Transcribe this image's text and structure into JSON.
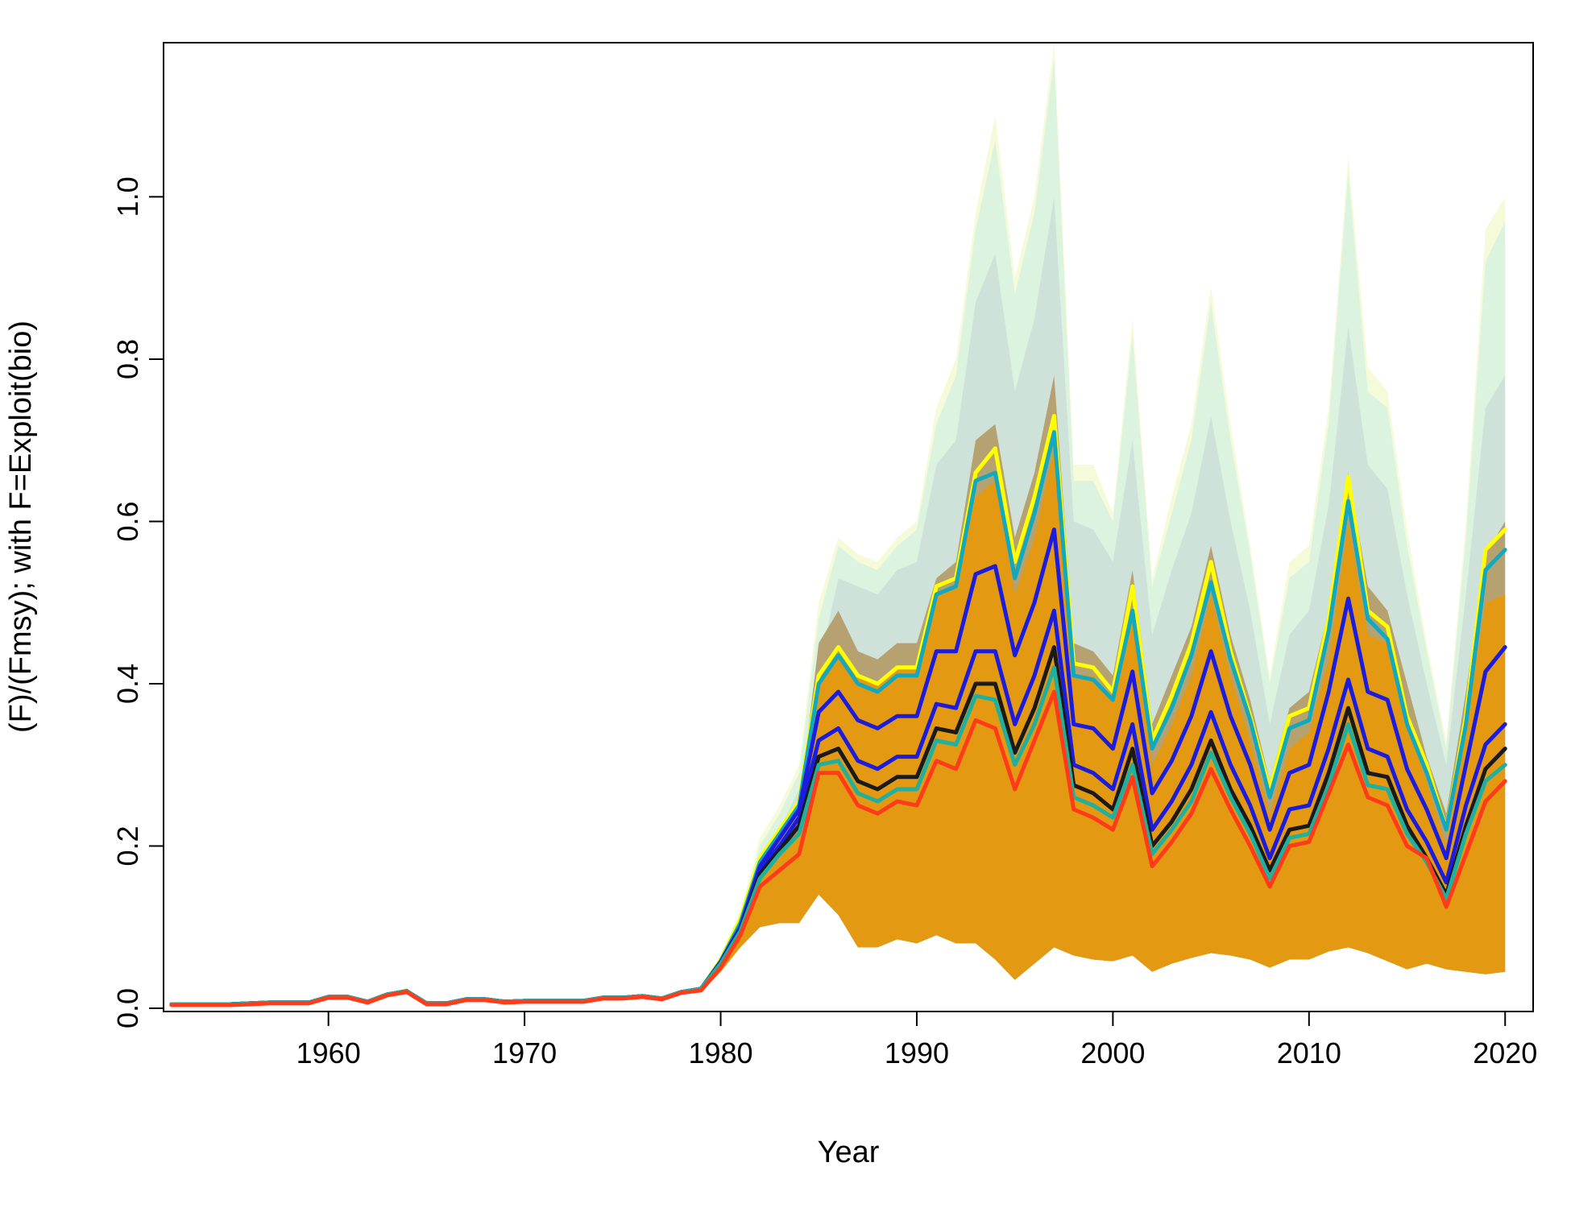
{
  "chart_data": {
    "type": "area",
    "xlabel": "Year",
    "ylabel": "(F)/(Fmsy); with F=Exploit(bio)",
    "xlim": [
      1952,
      2020
    ],
    "ylim": [
      0,
      1.19
    ],
    "xticks": [
      1960,
      1970,
      1980,
      1990,
      2000,
      2010,
      2020
    ],
    "yticks": [
      0.0,
      0.2,
      0.4,
      0.6,
      0.8,
      1.0
    ],
    "ytick_labels": [
      "0.0",
      "0.2",
      "0.4",
      "0.6",
      "0.8",
      "1.0"
    ],
    "grid": false,
    "legend": "none",
    "x": [
      1952,
      1953,
      1954,
      1955,
      1956,
      1957,
      1958,
      1959,
      1960,
      1961,
      1962,
      1963,
      1964,
      1965,
      1966,
      1967,
      1968,
      1969,
      1970,
      1971,
      1972,
      1973,
      1974,
      1975,
      1976,
      1977,
      1978,
      1979,
      1980,
      1981,
      1982,
      1983,
      1984,
      1985,
      1986,
      1987,
      1988,
      1989,
      1990,
      1991,
      1992,
      1993,
      1994,
      1995,
      1996,
      1997,
      1998,
      1999,
      2000,
      2001,
      2002,
      2003,
      2004,
      2005,
      2006,
      2007,
      2008,
      2009,
      2010,
      2011,
      2012,
      2013,
      2014,
      2015,
      2016,
      2017,
      2018,
      2019,
      2020
    ],
    "bands": [
      {
        "color": "#f5fbd8",
        "lower": "lower_band",
        "upper": "upper_outer"
      },
      {
        "color": "#dcf3df",
        "lower": "lower_band",
        "upper": "upper_mid"
      },
      {
        "color": "#cfe2da",
        "lower": "lower_band",
        "upper": "upper_inner"
      },
      {
        "color": "#b6a270",
        "lower": "lower_band",
        "upper": "upper_olive"
      },
      {
        "color": "#e39a12",
        "lower": "lower_band",
        "upper": "upper_orange"
      }
    ],
    "envelopes": {
      "lower_band": [
        0.003,
        0.003,
        0.003,
        0.003,
        0.004,
        0.005,
        0.005,
        0.005,
        0.011,
        0.011,
        0.006,
        0.014,
        0.018,
        0.005,
        0.005,
        0.009,
        0.009,
        0.006,
        0.007,
        0.007,
        0.007,
        0.007,
        0.011,
        0.011,
        0.012,
        0.01,
        0.017,
        0.02,
        0.045,
        0.075,
        0.1,
        0.105,
        0.105,
        0.14,
        0.115,
        0.075,
        0.075,
        0.085,
        0.08,
        0.09,
        0.08,
        0.08,
        0.06,
        0.035,
        0.055,
        0.075,
        0.065,
        0.06,
        0.058,
        0.065,
        0.045,
        0.055,
        0.062,
        0.068,
        0.065,
        0.06,
        0.05,
        0.06,
        0.06,
        0.07,
        0.075,
        0.068,
        0.058,
        0.048,
        0.055,
        0.048,
        0.045,
        0.042,
        0.045
      ],
      "upper_outer": [
        0.006,
        0.006,
        0.006,
        0.006,
        0.008,
        0.008,
        0.008,
        0.008,
        0.016,
        0.016,
        0.01,
        0.019,
        0.024,
        0.008,
        0.008,
        0.013,
        0.013,
        0.009,
        0.011,
        0.011,
        0.011,
        0.011,
        0.015,
        0.015,
        0.017,
        0.014,
        0.022,
        0.026,
        0.065,
        0.12,
        0.21,
        0.25,
        0.3,
        0.5,
        0.58,
        0.56,
        0.55,
        0.58,
        0.6,
        0.74,
        0.8,
        0.98,
        1.1,
        0.9,
        1.0,
        1.19,
        0.67,
        0.67,
        0.61,
        0.85,
        0.53,
        0.63,
        0.72,
        0.89,
        0.72,
        0.57,
        0.41,
        0.55,
        0.57,
        0.74,
        1.05,
        0.79,
        0.76,
        0.59,
        0.45,
        0.33,
        0.6,
        0.96,
        1.0
      ],
      "upper_mid": [
        0.006,
        0.006,
        0.006,
        0.006,
        0.008,
        0.008,
        0.008,
        0.008,
        0.016,
        0.016,
        0.01,
        0.019,
        0.024,
        0.008,
        0.008,
        0.013,
        0.013,
        0.009,
        0.011,
        0.011,
        0.011,
        0.011,
        0.015,
        0.015,
        0.017,
        0.014,
        0.022,
        0.026,
        0.062,
        0.115,
        0.2,
        0.24,
        0.29,
        0.48,
        0.57,
        0.55,
        0.54,
        0.57,
        0.59,
        0.72,
        0.78,
        0.96,
        1.07,
        0.88,
        0.98,
        1.17,
        0.65,
        0.65,
        0.6,
        0.83,
        0.52,
        0.61,
        0.7,
        0.87,
        0.7,
        0.56,
        0.4,
        0.53,
        0.55,
        0.72,
        1.03,
        0.76,
        0.74,
        0.57,
        0.44,
        0.32,
        0.58,
        0.92,
        0.97
      ],
      "upper_inner": [
        0.006,
        0.006,
        0.006,
        0.006,
        0.008,
        0.008,
        0.008,
        0.008,
        0.016,
        0.016,
        0.01,
        0.019,
        0.024,
        0.008,
        0.008,
        0.013,
        0.013,
        0.009,
        0.011,
        0.011,
        0.011,
        0.011,
        0.015,
        0.015,
        0.017,
        0.014,
        0.022,
        0.026,
        0.06,
        0.11,
        0.19,
        0.22,
        0.27,
        0.42,
        0.53,
        0.52,
        0.51,
        0.54,
        0.55,
        0.67,
        0.7,
        0.87,
        0.93,
        0.76,
        0.85,
        1.0,
        0.6,
        0.59,
        0.55,
        0.7,
        0.46,
        0.54,
        0.61,
        0.73,
        0.6,
        0.49,
        0.35,
        0.46,
        0.49,
        0.62,
        0.84,
        0.67,
        0.64,
        0.51,
        0.4,
        0.3,
        0.51,
        0.74,
        0.78
      ],
      "upper_olive": [
        0.006,
        0.006,
        0.006,
        0.006,
        0.008,
        0.008,
        0.008,
        0.008,
        0.016,
        0.016,
        0.01,
        0.019,
        0.024,
        0.008,
        0.008,
        0.013,
        0.013,
        0.009,
        0.011,
        0.011,
        0.011,
        0.011,
        0.015,
        0.015,
        0.017,
        0.014,
        0.022,
        0.026,
        0.058,
        0.1,
        0.18,
        0.21,
        0.25,
        0.45,
        0.49,
        0.44,
        0.43,
        0.45,
        0.45,
        0.53,
        0.55,
        0.7,
        0.72,
        0.58,
        0.66,
        0.78,
        0.45,
        0.44,
        0.41,
        0.54,
        0.35,
        0.41,
        0.47,
        0.57,
        0.46,
        0.38,
        0.28,
        0.37,
        0.39,
        0.49,
        0.66,
        0.52,
        0.49,
        0.4,
        0.31,
        0.24,
        0.39,
        0.56,
        0.6
      ],
      "upper_orange": [
        0.006,
        0.006,
        0.006,
        0.006,
        0.008,
        0.008,
        0.008,
        0.008,
        0.016,
        0.016,
        0.01,
        0.019,
        0.024,
        0.008,
        0.008,
        0.013,
        0.013,
        0.009,
        0.011,
        0.011,
        0.011,
        0.011,
        0.015,
        0.015,
        0.017,
        0.014,
        0.022,
        0.026,
        0.055,
        0.095,
        0.17,
        0.2,
        0.23,
        0.4,
        0.44,
        0.41,
        0.4,
        0.42,
        0.42,
        0.51,
        0.52,
        0.63,
        0.65,
        0.51,
        0.58,
        0.69,
        0.41,
        0.41,
        0.38,
        0.49,
        0.3,
        0.35,
        0.41,
        0.51,
        0.41,
        0.33,
        0.24,
        0.32,
        0.34,
        0.43,
        0.6,
        0.46,
        0.45,
        0.35,
        0.28,
        0.2,
        0.35,
        0.5,
        0.51
      ]
    },
    "series": [
      {
        "color": "#ffff00",
        "values": [
          0.005,
          0.005,
          0.005,
          0.005,
          0.006,
          0.007,
          0.007,
          0.007,
          0.014,
          0.014,
          0.008,
          0.017,
          0.021,
          0.006,
          0.006,
          0.011,
          0.011,
          0.008,
          0.009,
          0.009,
          0.009,
          0.009,
          0.013,
          0.013,
          0.015,
          0.012,
          0.02,
          0.024,
          0.06,
          0.11,
          0.185,
          0.22,
          0.255,
          0.41,
          0.445,
          0.41,
          0.4,
          0.42,
          0.42,
          0.52,
          0.53,
          0.66,
          0.69,
          0.55,
          0.63,
          0.73,
          0.425,
          0.42,
          0.39,
          0.52,
          0.33,
          0.385,
          0.45,
          0.55,
          0.44,
          0.36,
          0.27,
          0.36,
          0.37,
          0.48,
          0.655,
          0.49,
          0.47,
          0.36,
          0.3,
          0.22,
          0.36,
          0.565,
          0.59
        ]
      },
      {
        "color": "#12a9bf",
        "values": [
          0.005,
          0.005,
          0.005,
          0.005,
          0.006,
          0.007,
          0.007,
          0.007,
          0.014,
          0.014,
          0.008,
          0.017,
          0.021,
          0.006,
          0.006,
          0.011,
          0.011,
          0.008,
          0.009,
          0.009,
          0.009,
          0.009,
          0.013,
          0.013,
          0.015,
          0.012,
          0.02,
          0.024,
          0.058,
          0.105,
          0.18,
          0.215,
          0.25,
          0.4,
          0.435,
          0.4,
          0.39,
          0.41,
          0.41,
          0.51,
          0.52,
          0.65,
          0.66,
          0.53,
          0.61,
          0.71,
          0.41,
          0.405,
          0.38,
          0.49,
          0.32,
          0.37,
          0.435,
          0.525,
          0.43,
          0.355,
          0.26,
          0.345,
          0.355,
          0.465,
          0.625,
          0.48,
          0.455,
          0.35,
          0.29,
          0.22,
          0.35,
          0.54,
          0.565
        ]
      },
      {
        "color": "#1c1cdc",
        "values": [
          0.005,
          0.005,
          0.005,
          0.005,
          0.006,
          0.007,
          0.007,
          0.007,
          0.014,
          0.014,
          0.008,
          0.017,
          0.021,
          0.006,
          0.006,
          0.011,
          0.011,
          0.008,
          0.009,
          0.009,
          0.009,
          0.009,
          0.013,
          0.013,
          0.015,
          0.012,
          0.02,
          0.024,
          0.057,
          0.1,
          0.175,
          0.21,
          0.245,
          0.365,
          0.39,
          0.355,
          0.345,
          0.36,
          0.36,
          0.44,
          0.44,
          0.535,
          0.545,
          0.435,
          0.5,
          0.59,
          0.35,
          0.345,
          0.32,
          0.415,
          0.265,
          0.305,
          0.36,
          0.44,
          0.36,
          0.3,
          0.22,
          0.29,
          0.3,
          0.39,
          0.505,
          0.39,
          0.38,
          0.295,
          0.245,
          0.185,
          0.3,
          0.415,
          0.445
        ]
      },
      {
        "color": "#1c1cdc",
        "values": [
          0.005,
          0.005,
          0.005,
          0.005,
          0.006,
          0.007,
          0.007,
          0.007,
          0.014,
          0.014,
          0.008,
          0.017,
          0.021,
          0.006,
          0.006,
          0.011,
          0.011,
          0.008,
          0.009,
          0.009,
          0.009,
          0.009,
          0.013,
          0.013,
          0.015,
          0.012,
          0.02,
          0.024,
          0.056,
          0.098,
          0.17,
          0.2,
          0.235,
          0.33,
          0.345,
          0.305,
          0.295,
          0.31,
          0.31,
          0.375,
          0.37,
          0.44,
          0.44,
          0.35,
          0.41,
          0.49,
          0.3,
          0.29,
          0.27,
          0.35,
          0.22,
          0.255,
          0.3,
          0.365,
          0.3,
          0.25,
          0.185,
          0.245,
          0.25,
          0.32,
          0.405,
          0.32,
          0.31,
          0.245,
          0.205,
          0.155,
          0.25,
          0.325,
          0.35
        ]
      },
      {
        "color": "#1a1a1a",
        "values": [
          0.005,
          0.005,
          0.005,
          0.005,
          0.006,
          0.007,
          0.007,
          0.007,
          0.014,
          0.014,
          0.008,
          0.017,
          0.021,
          0.006,
          0.006,
          0.011,
          0.011,
          0.008,
          0.009,
          0.009,
          0.009,
          0.009,
          0.013,
          0.013,
          0.015,
          0.012,
          0.02,
          0.024,
          0.055,
          0.096,
          0.165,
          0.195,
          0.225,
          0.31,
          0.32,
          0.28,
          0.27,
          0.285,
          0.285,
          0.345,
          0.34,
          0.4,
          0.4,
          0.315,
          0.37,
          0.445,
          0.275,
          0.265,
          0.245,
          0.32,
          0.2,
          0.23,
          0.27,
          0.33,
          0.27,
          0.225,
          0.17,
          0.22,
          0.225,
          0.29,
          0.37,
          0.29,
          0.285,
          0.225,
          0.185,
          0.14,
          0.225,
          0.295,
          0.32
        ]
      },
      {
        "color": "#20b0a0",
        "values": [
          0.005,
          0.005,
          0.005,
          0.005,
          0.006,
          0.007,
          0.007,
          0.007,
          0.014,
          0.014,
          0.008,
          0.017,
          0.021,
          0.006,
          0.006,
          0.011,
          0.011,
          0.008,
          0.009,
          0.009,
          0.009,
          0.009,
          0.013,
          0.013,
          0.015,
          0.012,
          0.02,
          0.024,
          0.055,
          0.095,
          0.16,
          0.19,
          0.215,
          0.3,
          0.305,
          0.265,
          0.255,
          0.27,
          0.27,
          0.33,
          0.325,
          0.385,
          0.38,
          0.3,
          0.35,
          0.42,
          0.26,
          0.25,
          0.235,
          0.3,
          0.19,
          0.22,
          0.255,
          0.315,
          0.26,
          0.215,
          0.16,
          0.21,
          0.215,
          0.275,
          0.35,
          0.275,
          0.27,
          0.215,
          0.18,
          0.135,
          0.215,
          0.28,
          0.3
        ]
      },
      {
        "color": "#ff3b1a",
        "values": [
          0.004,
          0.004,
          0.004,
          0.004,
          0.005,
          0.006,
          0.006,
          0.006,
          0.013,
          0.013,
          0.007,
          0.016,
          0.02,
          0.005,
          0.005,
          0.01,
          0.01,
          0.007,
          0.008,
          0.008,
          0.008,
          0.008,
          0.012,
          0.012,
          0.014,
          0.011,
          0.019,
          0.022,
          0.05,
          0.09,
          0.15,
          0.17,
          0.19,
          0.29,
          0.29,
          0.25,
          0.24,
          0.255,
          0.25,
          0.305,
          0.295,
          0.355,
          0.345,
          0.27,
          0.33,
          0.39,
          0.245,
          0.235,
          0.22,
          0.285,
          0.175,
          0.205,
          0.24,
          0.295,
          0.245,
          0.2,
          0.15,
          0.2,
          0.205,
          0.265,
          0.325,
          0.26,
          0.25,
          0.2,
          0.185,
          0.125,
          0.19,
          0.255,
          0.28
        ]
      }
    ]
  }
}
